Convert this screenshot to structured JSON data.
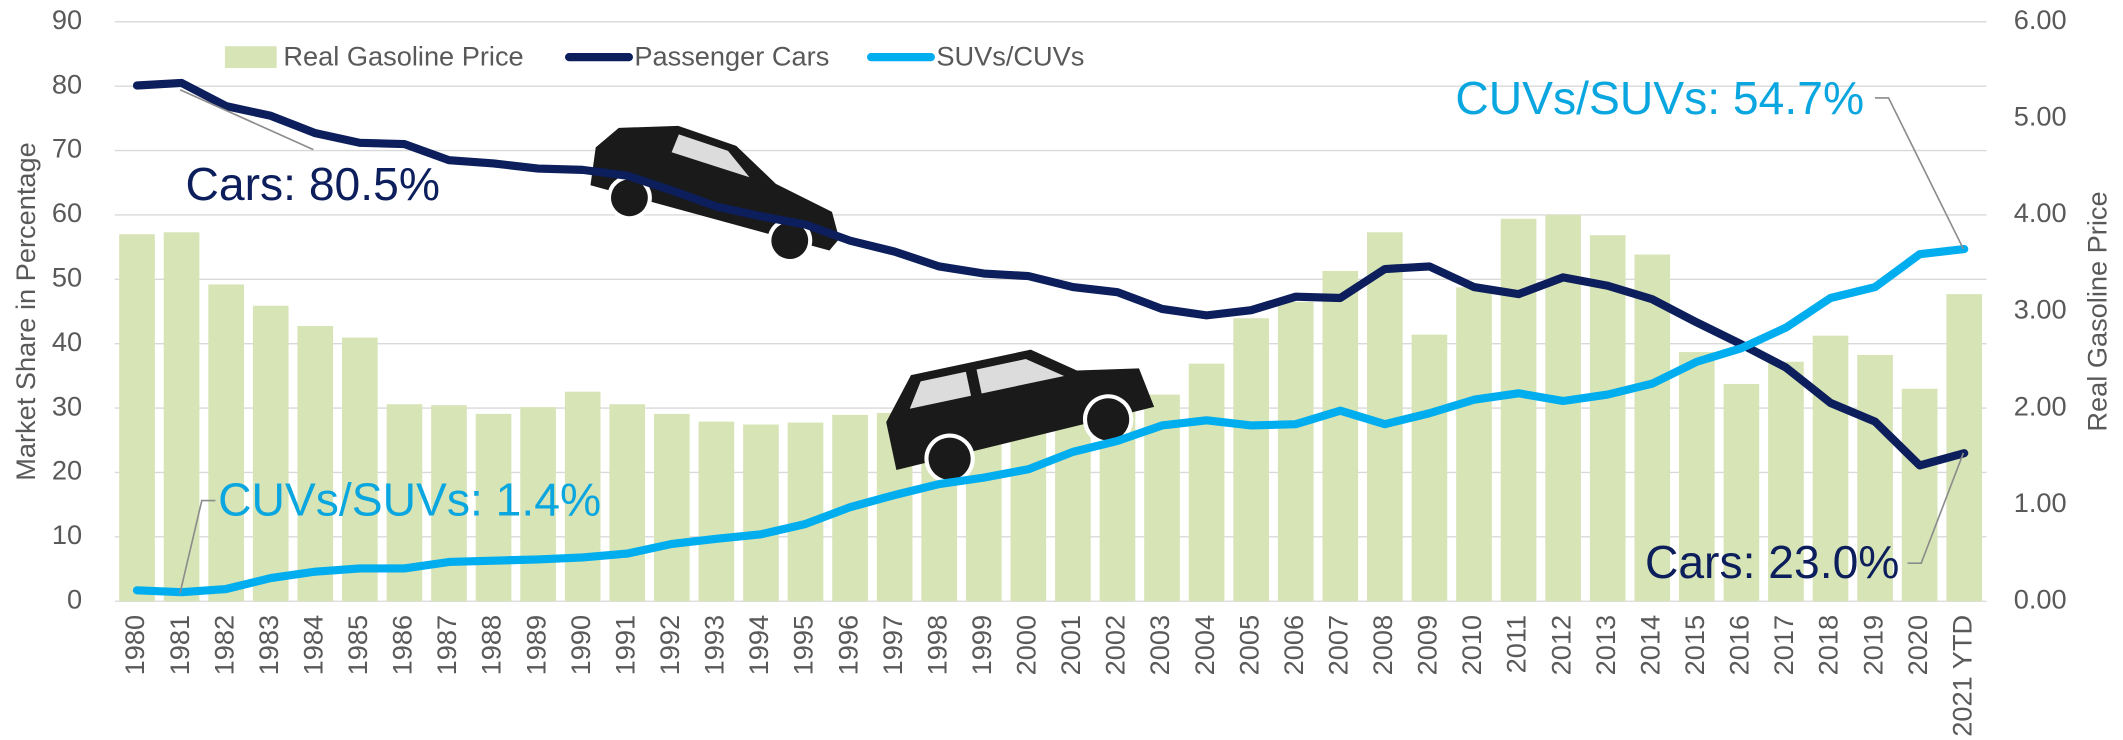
{
  "chart_data": {
    "type": "bar-line",
    "categories": [
      "1980",
      "1981",
      "1982",
      "1983",
      "1984",
      "1985",
      "1986",
      "1987",
      "1988",
      "1989",
      "1990",
      "1991",
      "1992",
      "1993",
      "1994",
      "1995",
      "1996",
      "1997",
      "1998",
      "1999",
      "2000",
      "2001",
      "2002",
      "2003",
      "2004",
      "2005",
      "2006",
      "2007",
      "2008",
      "2009",
      "2010",
      "2011",
      "2012",
      "2013",
      "2014",
      "2015",
      "2016",
      "2017",
      "2018",
      "2019",
      "2020",
      "2021 YTD"
    ],
    "series": [
      {
        "name": "Real Gasoline Price",
        "type": "bar",
        "axis": "y2",
        "color": "#d7e4b5",
        "values": [
          3.8,
          3.82,
          3.28,
          3.06,
          2.85,
          2.73,
          2.04,
          2.03,
          1.94,
          2.01,
          2.17,
          2.04,
          1.94,
          1.86,
          1.83,
          1.85,
          1.93,
          1.95,
          1.65,
          1.8,
          2.25,
          2.15,
          2.05,
          2.14,
          2.46,
          2.93,
          3.1,
          3.42,
          3.82,
          2.76,
          3.25,
          3.96,
          4.0,
          3.79,
          3.59,
          2.58,
          2.25,
          2.48,
          2.75,
          2.55,
          2.2,
          3.18
        ]
      },
      {
        "name": "Passenger Cars",
        "type": "line",
        "color": "#0c1e5b",
        "values": [
          80.1,
          80.5,
          76.9,
          75.4,
          72.7,
          71.2,
          71.0,
          68.5,
          68.0,
          67.2,
          67.0,
          66.1,
          63.8,
          61.3,
          59.8,
          58.5,
          56.0,
          54.3,
          52.0,
          50.9,
          50.5,
          48.8,
          48.0,
          45.4,
          44.4,
          45.2,
          47.3,
          47.1,
          51.6,
          52.0,
          48.8,
          47.7,
          50.3,
          49.0,
          46.9,
          43.3,
          39.9,
          36.3,
          30.8,
          27.9,
          21.1,
          23.0
        ]
      },
      {
        "name": "SUVs/CUVs",
        "type": "line",
        "color": "#00aeef",
        "values": [
          1.7,
          1.4,
          1.9,
          3.6,
          4.6,
          5.1,
          5.1,
          6.1,
          6.3,
          6.5,
          6.8,
          7.4,
          8.9,
          9.7,
          10.4,
          12.0,
          14.6,
          16.5,
          18.2,
          19.2,
          20.5,
          23.2,
          24.9,
          27.3,
          28.1,
          27.3,
          27.5,
          29.6,
          27.5,
          29.2,
          31.3,
          32.3,
          31.1,
          32.1,
          33.8,
          37.2,
          39.3,
          42.5,
          47.1,
          48.8,
          53.9,
          54.7
        ]
      }
    ],
    "ylabel": "Market Share in Percentage",
    "y2label": "Real Gasoline Price",
    "ylim": [
      0,
      90
    ],
    "yticks": [
      0,
      10,
      20,
      30,
      40,
      50,
      60,
      70,
      80,
      90
    ],
    "y2lim": [
      0,
      6
    ],
    "y2ticks": [
      {
        "value": 0,
        "label": "0.00"
      },
      {
        "value": 1,
        "label": "1.00"
      },
      {
        "value": 2,
        "label": "2.00"
      },
      {
        "value": 3,
        "label": "3.00"
      },
      {
        "value": 4,
        "label": "4.00"
      },
      {
        "value": 5,
        "label": "5.00"
      },
      {
        "value": 6,
        "label": "6.00"
      }
    ],
    "grid": true,
    "annotations": [
      "Cars: 80.5%",
      "CUVs/SUVs: 1.4%",
      "CUVs/SUVs: 54.7%",
      "Cars: 23.0%"
    ]
  }
}
